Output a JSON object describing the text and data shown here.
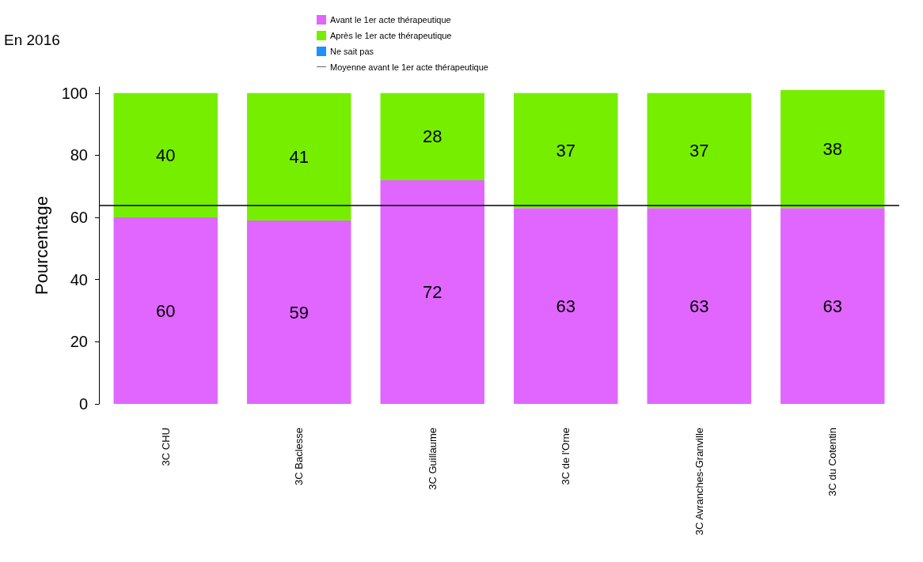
{
  "chart_data": {
    "type": "bar",
    "title": "En 2016",
    "ylabel": "Pourcentage",
    "stacked": true,
    "data_labels": true,
    "legend": "top",
    "grid": false,
    "categories": [
      "3C CHU",
      "3C Baclesse",
      "3C Guillaume",
      "3C de l'Orne",
      "3C Avranches-Granville",
      "3C du Cotentin"
    ],
    "series": [
      {
        "name": "Avant le 1er acte thérapeutique",
        "color": "#e066ff",
        "values": [
          60,
          59,
          72,
          63,
          63,
          63
        ]
      },
      {
        "name": "Après le 1er acte thérapeutique",
        "color": "#76ee00",
        "values": [
          40,
          41,
          28,
          37,
          37,
          38
        ]
      },
      {
        "name": "Ne sait pas",
        "color": "#1e90ff",
        "values": [
          null,
          null,
          null,
          null,
          null,
          null
        ]
      }
    ],
    "ref_lines": [
      {
        "axis": "y",
        "value": 64,
        "label": "Moyenne avant le 1er acte thérapeutique",
        "color": "#000000",
        "line_style": "solid"
      }
    ],
    "ylim": [
      0,
      102
    ],
    "yticks": [
      0,
      20,
      40,
      60,
      80,
      100
    ]
  }
}
